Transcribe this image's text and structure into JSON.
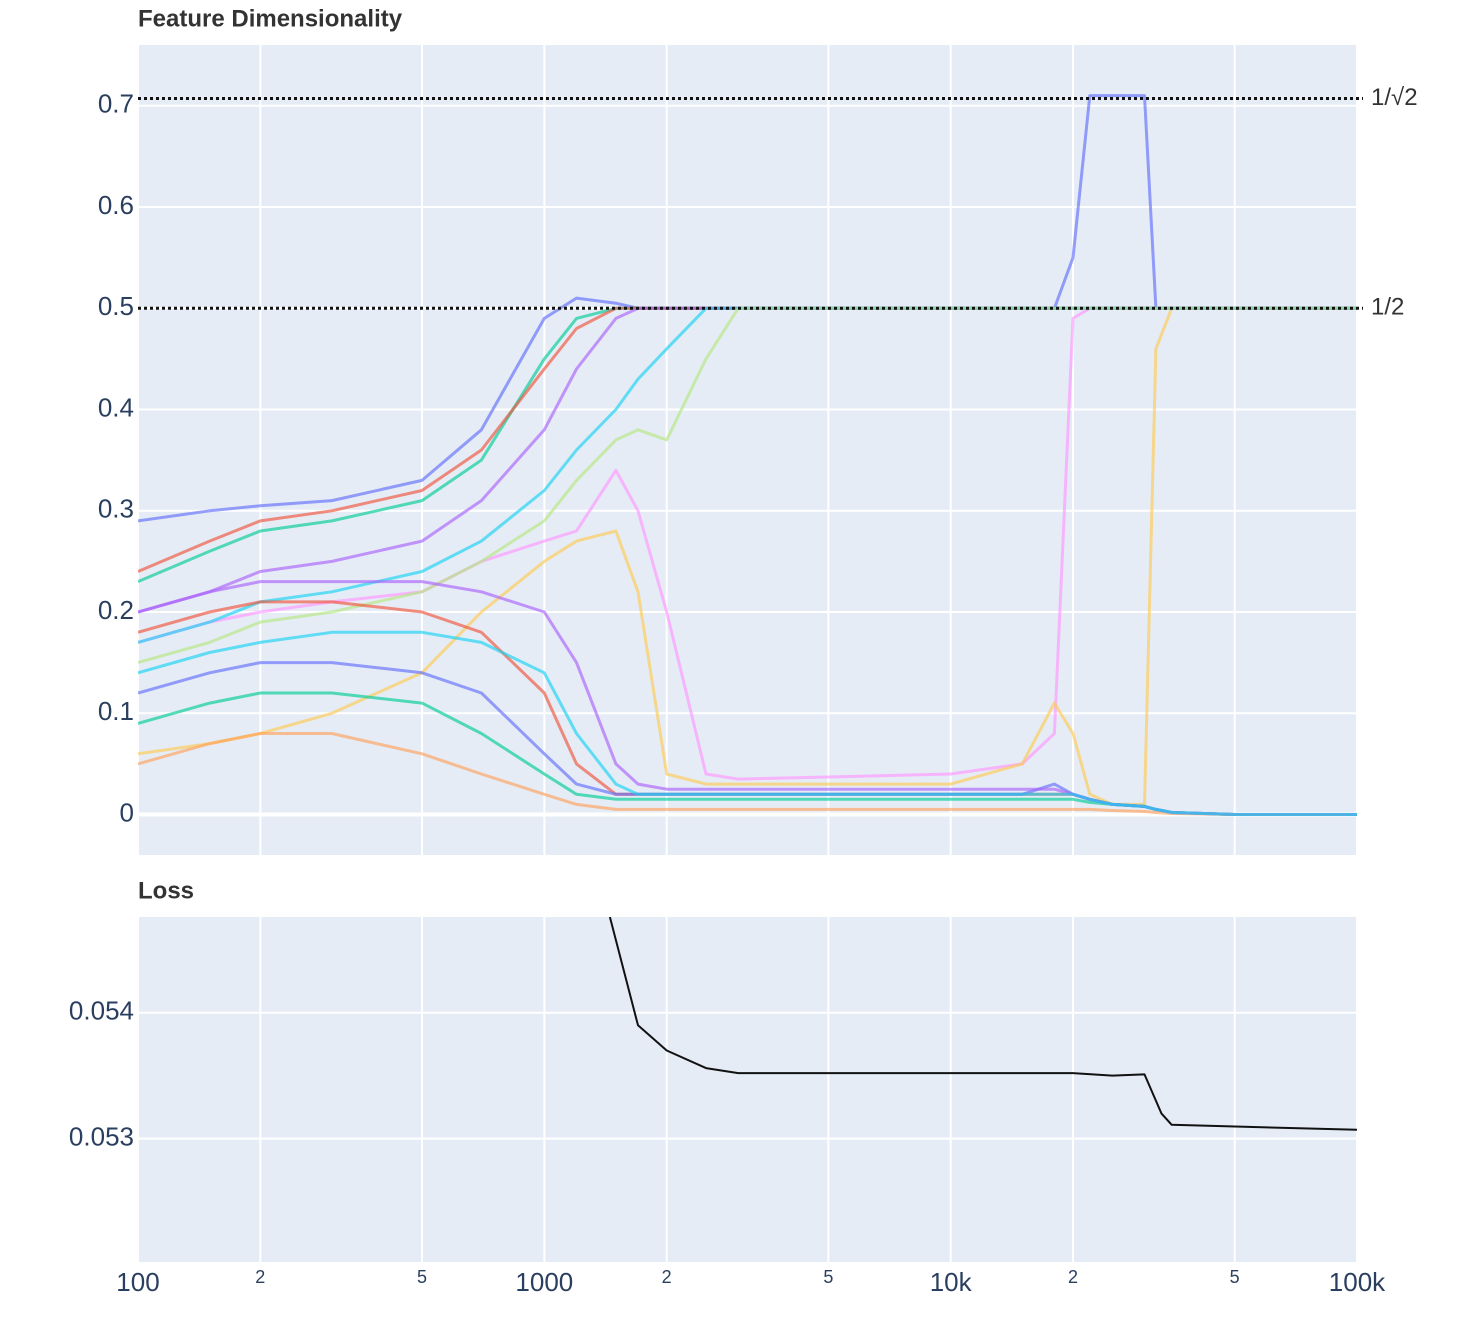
{
  "chart_data": [
    {
      "type": "line",
      "title": "Feature Dimensionality",
      "xscale": "log",
      "xlim": [
        100,
        100000
      ],
      "ylim": [
        -0.04,
        0.76
      ],
      "xticks": [
        100,
        200,
        500,
        1000,
        2000,
        5000,
        10000,
        20000,
        50000,
        100000
      ],
      "xtick_labels": false,
      "yticks": [
        0,
        0.1,
        0.2,
        0.3,
        0.4,
        0.5,
        0.6,
        0.7
      ],
      "grid": true,
      "hlines": [
        {
          "value": 0.7071,
          "label": "1/√2"
        },
        {
          "value": 0.5,
          "label": "1/2"
        }
      ],
      "x": [
        100,
        150,
        200,
        300,
        500,
        700,
        1000,
        1200,
        1500,
        1700,
        2000,
        2500,
        3000,
        5000,
        10000,
        15000,
        18000,
        20000,
        22000,
        25000,
        30000,
        32000,
        35000,
        50000,
        100000
      ],
      "series": [
        {
          "color": "#636efa",
          "values": [
            0.29,
            0.3,
            0.305,
            0.31,
            0.33,
            0.38,
            0.49,
            0.51,
            0.505,
            0.5,
            0.5,
            0.5,
            0.5,
            0.5,
            0.5,
            0.5,
            0.5,
            0.55,
            0.71,
            0.71,
            0.71,
            0.5,
            0.5,
            0.5,
            0.5
          ]
        },
        {
          "color": "#FF97FF",
          "values": [
            0.17,
            0.19,
            0.2,
            0.21,
            0.22,
            0.25,
            0.27,
            0.28,
            0.34,
            0.3,
            0.2,
            0.04,
            0.035,
            0.037,
            0.04,
            0.05,
            0.08,
            0.49,
            0.5,
            0.5,
            0.5,
            0.5,
            0.5,
            0.5,
            0.5
          ]
        },
        {
          "color": "#FECB52",
          "values": [
            0.06,
            0.07,
            0.08,
            0.1,
            0.14,
            0.2,
            0.25,
            0.27,
            0.28,
            0.22,
            0.04,
            0.03,
            0.03,
            0.03,
            0.03,
            0.05,
            0.11,
            0.08,
            0.02,
            0.01,
            0.01,
            0.46,
            0.5,
            0.5,
            0.5
          ]
        },
        {
          "color": "#00cc96",
          "values": [
            0.23,
            0.26,
            0.28,
            0.29,
            0.31,
            0.35,
            0.45,
            0.49,
            0.5,
            0.5,
            0.5,
            0.5,
            0.5,
            0.5,
            0.5,
            0.5,
            0.5,
            0.5,
            0.5,
            0.5,
            0.5,
            0.5,
            0.5,
            0.5,
            0.5
          ]
        },
        {
          "color": "#EF553B",
          "values": [
            0.24,
            0.27,
            0.29,
            0.3,
            0.32,
            0.36,
            0.44,
            0.48,
            0.5,
            0.5,
            0.5,
            0.5,
            0.5,
            0.5,
            0.5,
            0.5,
            0.5,
            0.5,
            0.5,
            0.5,
            0.5,
            0.5,
            0.5,
            0.5,
            0.5
          ]
        },
        {
          "color": "#ab63fa",
          "values": [
            0.2,
            0.22,
            0.24,
            0.25,
            0.27,
            0.31,
            0.38,
            0.44,
            0.49,
            0.5,
            0.5,
            0.5,
            0.5,
            0.5,
            0.5,
            0.5,
            0.5,
            0.5,
            0.5,
            0.5,
            0.5,
            0.5,
            0.5,
            0.5,
            0.5
          ]
        },
        {
          "color": "#19d3f3",
          "values": [
            0.17,
            0.19,
            0.21,
            0.22,
            0.24,
            0.27,
            0.32,
            0.36,
            0.4,
            0.43,
            0.46,
            0.5,
            0.5,
            0.5,
            0.5,
            0.5,
            0.5,
            0.5,
            0.5,
            0.5,
            0.5,
            0.5,
            0.5,
            0.5,
            0.5
          ]
        },
        {
          "color": "#B6E880",
          "values": [
            0.15,
            0.17,
            0.19,
            0.2,
            0.22,
            0.25,
            0.29,
            0.33,
            0.37,
            0.38,
            0.37,
            0.45,
            0.5,
            0.5,
            0.5,
            0.5,
            0.5,
            0.5,
            0.5,
            0.5,
            0.5,
            0.5,
            0.5,
            0.5,
            0.5
          ]
        },
        {
          "color": "#EF553B",
          "values": [
            0.18,
            0.2,
            0.21,
            0.21,
            0.2,
            0.18,
            0.12,
            0.05,
            0.02,
            0.02,
            0.02,
            0.02,
            0.02,
            0.02,
            0.02,
            0.02,
            0.02,
            0.02,
            0.015,
            0.01,
            0.008,
            0.005,
            0.002,
            0,
            0
          ]
        },
        {
          "color": "#636efa",
          "values": [
            0.12,
            0.14,
            0.15,
            0.15,
            0.14,
            0.12,
            0.06,
            0.03,
            0.02,
            0.02,
            0.02,
            0.02,
            0.02,
            0.02,
            0.02,
            0.02,
            0.03,
            0.02,
            0.015,
            0.01,
            0.008,
            0.005,
            0.002,
            0,
            0
          ]
        },
        {
          "color": "#00cc96",
          "values": [
            0.09,
            0.11,
            0.12,
            0.12,
            0.11,
            0.08,
            0.04,
            0.02,
            0.015,
            0.015,
            0.015,
            0.015,
            0.015,
            0.015,
            0.015,
            0.015,
            0.015,
            0.015,
            0.012,
            0.01,
            0.008,
            0.005,
            0.002,
            0,
            0
          ]
        },
        {
          "color": "#FFA15A",
          "values": [
            0.05,
            0.07,
            0.08,
            0.08,
            0.06,
            0.04,
            0.02,
            0.01,
            0.005,
            0.005,
            0.005,
            0.005,
            0.005,
            0.005,
            0.005,
            0.005,
            0.005,
            0.005,
            0.005,
            0.004,
            0.003,
            0.002,
            0.001,
            0,
            0
          ]
        },
        {
          "color": "#ab63fa",
          "values": [
            0.2,
            0.22,
            0.23,
            0.23,
            0.23,
            0.22,
            0.2,
            0.15,
            0.05,
            0.03,
            0.025,
            0.025,
            0.025,
            0.025,
            0.025,
            0.025,
            0.025,
            0.02,
            0.015,
            0.01,
            0.008,
            0.005,
            0.002,
            0,
            0
          ]
        },
        {
          "color": "#19d3f3",
          "values": [
            0.14,
            0.16,
            0.17,
            0.18,
            0.18,
            0.17,
            0.14,
            0.08,
            0.03,
            0.02,
            0.02,
            0.02,
            0.02,
            0.02,
            0.02,
            0.02,
            0.02,
            0.02,
            0.015,
            0.01,
            0.008,
            0.005,
            0.002,
            0,
            0
          ]
        }
      ]
    },
    {
      "type": "line",
      "title": "Loss",
      "xscale": "log",
      "xlim": [
        100,
        100000
      ],
      "ylim": [
        0.05202,
        0.05476
      ],
      "xticks": [
        100,
        {
          "value": 200,
          "label": "2"
        },
        {
          "value": 500,
          "label": "5"
        },
        1000,
        {
          "value": 2000,
          "label": "2"
        },
        {
          "value": 5000,
          "label": "5"
        },
        {
          "value": 10000,
          "label": "10k"
        },
        {
          "value": 20000,
          "label": "2"
        },
        {
          "value": 50000,
          "label": "5"
        },
        {
          "value": 100000,
          "label": "100k"
        }
      ],
      "xtick_labels": true,
      "yticks": [
        0.053,
        0.054
      ],
      "grid": true,
      "x": [
        1450,
        1700,
        2000,
        2500,
        3000,
        5000,
        10000,
        20000,
        25000,
        30000,
        33000,
        35000,
        100000
      ],
      "series": [
        {
          "color": "#111111",
          "values": [
            0.05476,
            0.0539,
            0.0537,
            0.05356,
            0.05352,
            0.05352,
            0.05352,
            0.05352,
            0.0535,
            0.05351,
            0.0532,
            0.05311,
            0.05307
          ]
        }
      ]
    }
  ]
}
